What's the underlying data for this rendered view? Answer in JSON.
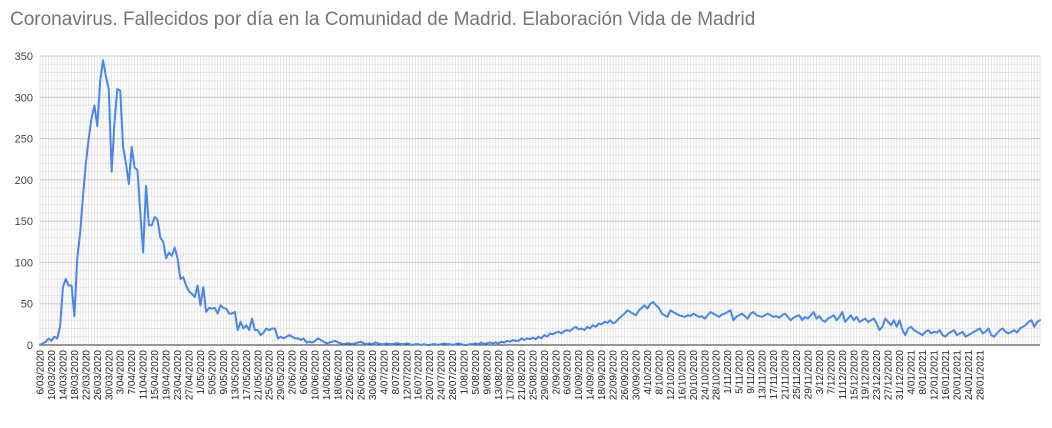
{
  "chart_data": {
    "type": "line",
    "title": "Coronavirus. Fallecidos por día en la Comunidad de Madrid. Elaboración Vida de Madrid",
    "xlabel": "",
    "ylabel": "",
    "ylim": [
      0,
      350
    ],
    "y_ticks": [
      0,
      50,
      100,
      150,
      200,
      250,
      300,
      350
    ],
    "grid": true,
    "legend": "none",
    "line_color": "#4a86e8",
    "x_start": "6/03/2020",
    "x_end": "31/01/2021",
    "x_tick_labels": [
      "6/03/2020",
      "10/03/2020",
      "14/03/2020",
      "18/03/2020",
      "22/03/2020",
      "26/03/2020",
      "30/03/2020",
      "3/04/2020",
      "7/04/2020",
      "11/04/2020",
      "15/04/2020",
      "19/04/2020",
      "23/04/2020",
      "27/04/2020",
      "1/05/2020",
      "5/05/2020",
      "9/05/2020",
      "13/05/2020",
      "17/05/2020",
      "21/05/2020",
      "25/05/2020",
      "29/05/2020",
      "2/06/2020",
      "6/06/2020",
      "10/06/2020",
      "14/06/2020",
      "18/06/2020",
      "22/06/2020",
      "26/06/2020",
      "30/06/2020",
      "4/07/2020",
      "8/07/2020",
      "12/07/2020",
      "16/07/2020",
      "20/07/2020",
      "24/07/2020",
      "28/07/2020",
      "1/08/2020",
      "5/08/2020",
      "9/08/2020",
      "13/08/2020",
      "17/08/2020",
      "21/08/2020",
      "25/08/2020",
      "29/08/2020",
      "2/09/2020",
      "6/09/2020",
      "10/09/2020",
      "14/09/2020",
      "18/09/2020",
      "22/09/2020",
      "26/09/2020",
      "30/09/2020",
      "4/10/2020",
      "8/10/2020",
      "12/10/2020",
      "16/10/2020",
      "20/10/2020",
      "24/10/2020",
      "28/10/2020",
      "1/11/2020",
      "5/11/2020",
      "9/11/2020",
      "13/11/2020",
      "17/11/2020",
      "21/11/2020",
      "25/11/2020",
      "29/11/2020",
      "3/12/2020",
      "7/12/2020",
      "11/12/2020",
      "15/12/2020",
      "19/12/2020",
      "23/12/2020",
      "27/12/2020",
      "31/12/2020",
      "4/01/2021",
      "8/01/2021",
      "12/01/2021",
      "16/01/2021",
      "20/01/2021",
      "24/01/2021",
      "28/01/2021"
    ],
    "series": [
      {
        "values": [
          0,
          2,
          4,
          8,
          5,
          10,
          8,
          22,
          70,
          80,
          72,
          72,
          35,
          105,
          135,
          180,
          220,
          250,
          275,
          290,
          265,
          320,
          345,
          325,
          310,
          210,
          270,
          310,
          308,
          240,
          220,
          195,
          240,
          215,
          212,
          160,
          112,
          193,
          145,
          145,
          155,
          152,
          130,
          125,
          105,
          112,
          108,
          118,
          105,
          80,
          82,
          72,
          65,
          62,
          58,
          72,
          48,
          70,
          40,
          45,
          44,
          45,
          38,
          48,
          45,
          44,
          38,
          38,
          40,
          18,
          28,
          20,
          24,
          18,
          32,
          18,
          18,
          12,
          15,
          20,
          18,
          20,
          20,
          8,
          10,
          8,
          10,
          12,
          10,
          8,
          8,
          6,
          8,
          3,
          4,
          3,
          5,
          8,
          6,
          4,
          2,
          3,
          4,
          5,
          3,
          2,
          1,
          2,
          2,
          1,
          2,
          3,
          4,
          2,
          1,
          2,
          1,
          3,
          2,
          1,
          1,
          2,
          1,
          1,
          2,
          2,
          1,
          1,
          2,
          1,
          0,
          1,
          1,
          0,
          1,
          0,
          0,
          1,
          1,
          0,
          1,
          2,
          1,
          1,
          0,
          1,
          2,
          1,
          0,
          0,
          1,
          1,
          2,
          1,
          3,
          1,
          2,
          3,
          2,
          3,
          2,
          4,
          3,
          5,
          4,
          6,
          5,
          5,
          8,
          6,
          8,
          7,
          9,
          7,
          10,
          8,
          12,
          10,
          14,
          13,
          15,
          16,
          14,
          17,
          18,
          17,
          20,
          22,
          19,
          20,
          18,
          22,
          20,
          24,
          22,
          26,
          25,
          28,
          27,
          30,
          26,
          28,
          32,
          35,
          38,
          42,
          40,
          38,
          36,
          42,
          45,
          48,
          44,
          50,
          52,
          48,
          45,
          38,
          36,
          34,
          42,
          40,
          38,
          36,
          35,
          34,
          36,
          35,
          38,
          36,
          34,
          35,
          32,
          36,
          40,
          38,
          36,
          34,
          37,
          38,
          40,
          42,
          30,
          34,
          36,
          38,
          35,
          32,
          38,
          40,
          36,
          35,
          34,
          36,
          38,
          36,
          34,
          35,
          33,
          36,
          38,
          34,
          30,
          33,
          35,
          36,
          30,
          34,
          32,
          36,
          40,
          32,
          35,
          30,
          28,
          32,
          34,
          36,
          30,
          34,
          40,
          28,
          32,
          36,
          30,
          34,
          28,
          30,
          32,
          28,
          30,
          32,
          26,
          18,
          22,
          32,
          28,
          24,
          30,
          22,
          30,
          18,
          12,
          20,
          22,
          18,
          16,
          14,
          12,
          16,
          18,
          14,
          16,
          15,
          18,
          12,
          10,
          14,
          16,
          18,
          12,
          14,
          16,
          10,
          12,
          14,
          16,
          18,
          20,
          14,
          16,
          20,
          12,
          10,
          14,
          18,
          20,
          16,
          14,
          16,
          18,
          15,
          20,
          22,
          24,
          28,
          30,
          22,
          28,
          30
        ]
      }
    ]
  }
}
